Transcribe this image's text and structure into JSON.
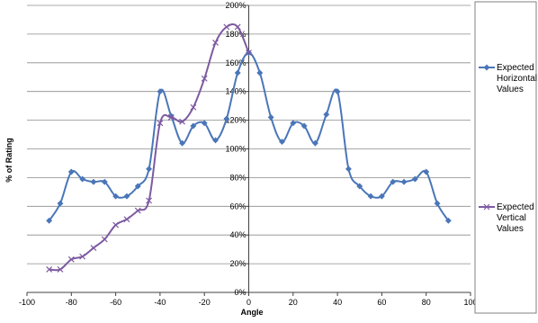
{
  "chart_data": {
    "type": "line",
    "title": "",
    "xlabel": "Angle",
    "ylabel": "% of Rating",
    "xlim": [
      -100,
      100
    ],
    "ylim": [
      0,
      200
    ],
    "x_ticks": [
      "-100",
      "-80",
      "-60",
      "-40",
      "-20",
      "0",
      "20",
      "40",
      "60",
      "80",
      "100"
    ],
    "y_ticks": [
      "0%",
      "20%",
      "40%",
      "60%",
      "80%",
      "100%",
      "120%",
      "140%",
      "160%",
      "180%",
      "200%"
    ],
    "grid": "horizontal major gridlines",
    "smooth": true,
    "legend_position": "right",
    "series": [
      {
        "name": "Expected Horizontal Values",
        "legend_lines": [
          "Expected",
          "Horizontal",
          "Values"
        ],
        "color": "#4a76b8",
        "marker": "diamond",
        "x": [
          -90,
          -85,
          -80,
          -75,
          -70,
          -65,
          -60,
          -55,
          -50,
          -45,
          -40,
          -35,
          -30,
          -25,
          -20,
          -15,
          -10,
          -5,
          0,
          5,
          10,
          15,
          20,
          25,
          30,
          35,
          40,
          45,
          50,
          55,
          60,
          65,
          70,
          75,
          80,
          85,
          90
        ],
        "y": [
          50,
          62,
          84,
          79,
          77,
          77,
          67,
          67,
          74,
          86,
          140,
          123,
          104,
          116,
          118,
          106,
          121,
          153,
          167,
          153,
          122,
          105,
          118,
          116,
          104,
          124,
          140,
          86,
          74,
          67,
          67,
          77,
          77,
          79,
          84,
          62,
          50
        ]
      },
      {
        "name": "Expected Vertical Values",
        "legend_lines": [
          "Expected",
          "Vertical",
          "Values"
        ],
        "color": "#7d5aa0",
        "marker": "x",
        "x": [
          -90,
          -85,
          -80,
          -75,
          -70,
          -65,
          -60,
          -55,
          -50,
          -45,
          -40,
          -35,
          -30,
          -25,
          -20,
          -15,
          -10,
          -5,
          0
        ],
        "y": [
          16,
          16,
          23,
          25,
          31,
          37,
          47,
          51,
          57,
          64,
          118,
          122,
          119,
          129,
          149,
          174,
          185,
          185,
          167
        ]
      }
    ]
  }
}
